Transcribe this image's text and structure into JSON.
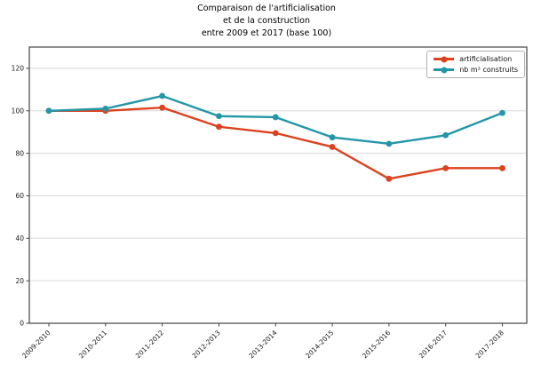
{
  "title": {
    "lines": [
      "Comparaison de l'artificialisation",
      "et de la construction",
      "entre 2009 et 2017 (base 100)"
    ]
  },
  "legend": {
    "position": "upper right",
    "items": [
      "artificialisation",
      "nb m² construits"
    ]
  },
  "chart_data": {
    "type": "line",
    "title": "Comparaison de l'artificialisation et de la construction entre 2009 et 2017 (base 100)",
    "categories": [
      "2009-2010",
      "2010-2011",
      "2011-2012",
      "2012-2013",
      "2013-2014",
      "2014-2015",
      "2015-2016",
      "2016-2017",
      "2017-2018"
    ],
    "series": [
      {
        "name": "artificialisation",
        "color": "#dc421e",
        "marker": "circle",
        "values": [
          100,
          100,
          101.5,
          92.5,
          89.5,
          83,
          68,
          73,
          73
        ]
      },
      {
        "name": "nb m² construits",
        "color": "#2396a8",
        "marker": "circle",
        "values": [
          100,
          101,
          107,
          97.5,
          97,
          87.5,
          84.5,
          88.5,
          99
        ]
      }
    ],
    "xlabel": "",
    "ylabel": "",
    "ylim": [
      0,
      130
    ],
    "yticks": [
      0,
      20,
      40,
      60,
      80,
      100,
      120
    ],
    "grid": "horizontal",
    "grid_color": "#d9d9d9",
    "axis_color": "#444444",
    "tick_label_color": "#1a1a1a",
    "legend_position": "upper right",
    "x_tick_rotation": 45
  }
}
